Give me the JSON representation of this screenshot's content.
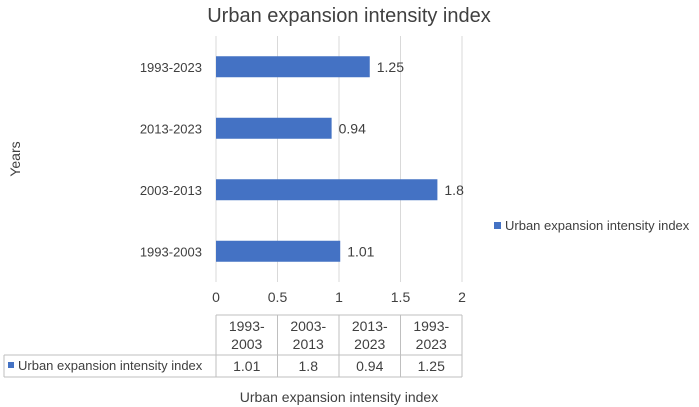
{
  "chart_data": {
    "type": "bar",
    "orientation": "horizontal",
    "title": "Urban expansion intensity index",
    "xlabel": "Urban expansion intensity index",
    "ylabel": "Years",
    "xlim": [
      0,
      2
    ],
    "x_ticks": [
      "0",
      "0.5",
      "1",
      "1.5",
      "2"
    ],
    "grid": true,
    "legend_position": "right",
    "bar_color": "#4472C4",
    "series": [
      {
        "name": "Urban expansion intensity index",
        "categories": [
          "1993-2003",
          "2003-2013",
          "2013-2023",
          "1993-2023"
        ],
        "values": [
          1.01,
          1.8,
          0.94,
          1.25
        ],
        "labels": [
          "1.01",
          "1.8",
          "0.94",
          "1.25"
        ]
      }
    ],
    "data_table": {
      "headers": [
        [
          "1993-",
          "2003"
        ],
        [
          "2003-",
          "2013"
        ],
        [
          "2013-",
          "2023"
        ],
        [
          "1993-",
          "2023"
        ]
      ],
      "row_label": "Urban expansion intensity index",
      "values": [
        "1.01",
        "1.8",
        "0.94",
        "1.25"
      ]
    }
  }
}
